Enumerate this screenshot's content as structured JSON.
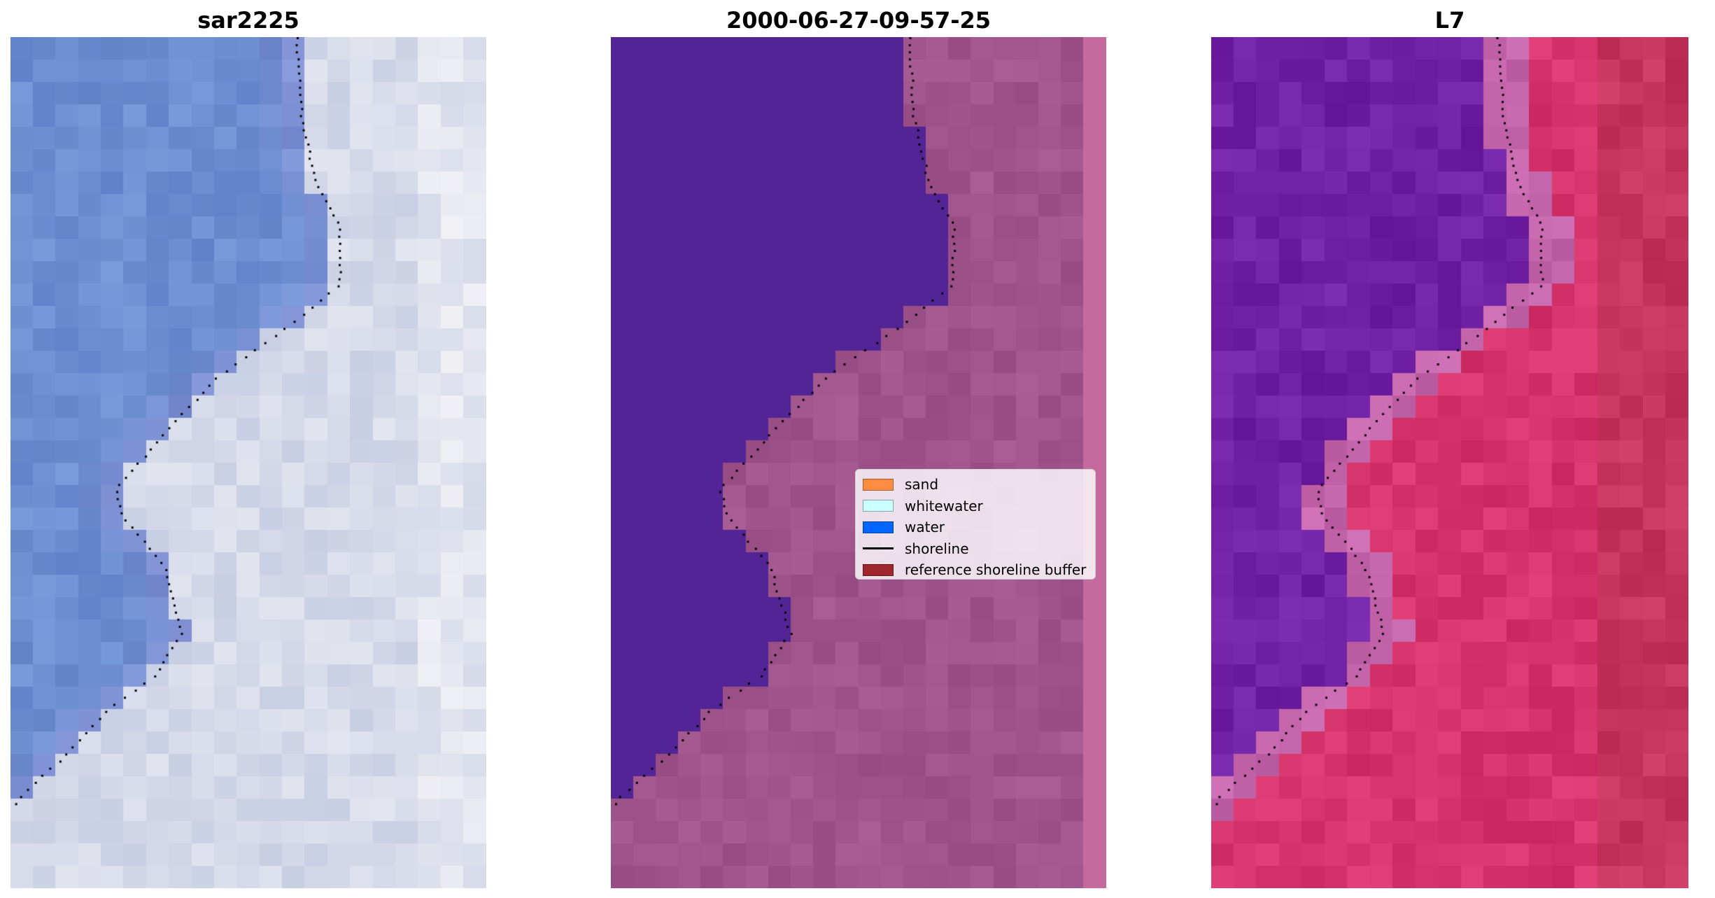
{
  "panels": [
    {
      "title": "sar2225",
      "style": "rgb"
    },
    {
      "title": "2000-06-27-09-57-25",
      "style": "classified"
    },
    {
      "title": "L7",
      "style": "index"
    }
  ],
  "legend": {
    "items": [
      {
        "label": "sand",
        "type": "patch",
        "color": "#ff8c40"
      },
      {
        "label": "whitewater",
        "type": "patch",
        "color": "#ccffff"
      },
      {
        "label": "water",
        "type": "patch",
        "color": "#0066ff"
      },
      {
        "label": "shoreline",
        "type": "line",
        "color": "#000000"
      },
      {
        "label": "reference shoreline buffer",
        "type": "patch",
        "color": "#a0262d"
      }
    ]
  }
}
